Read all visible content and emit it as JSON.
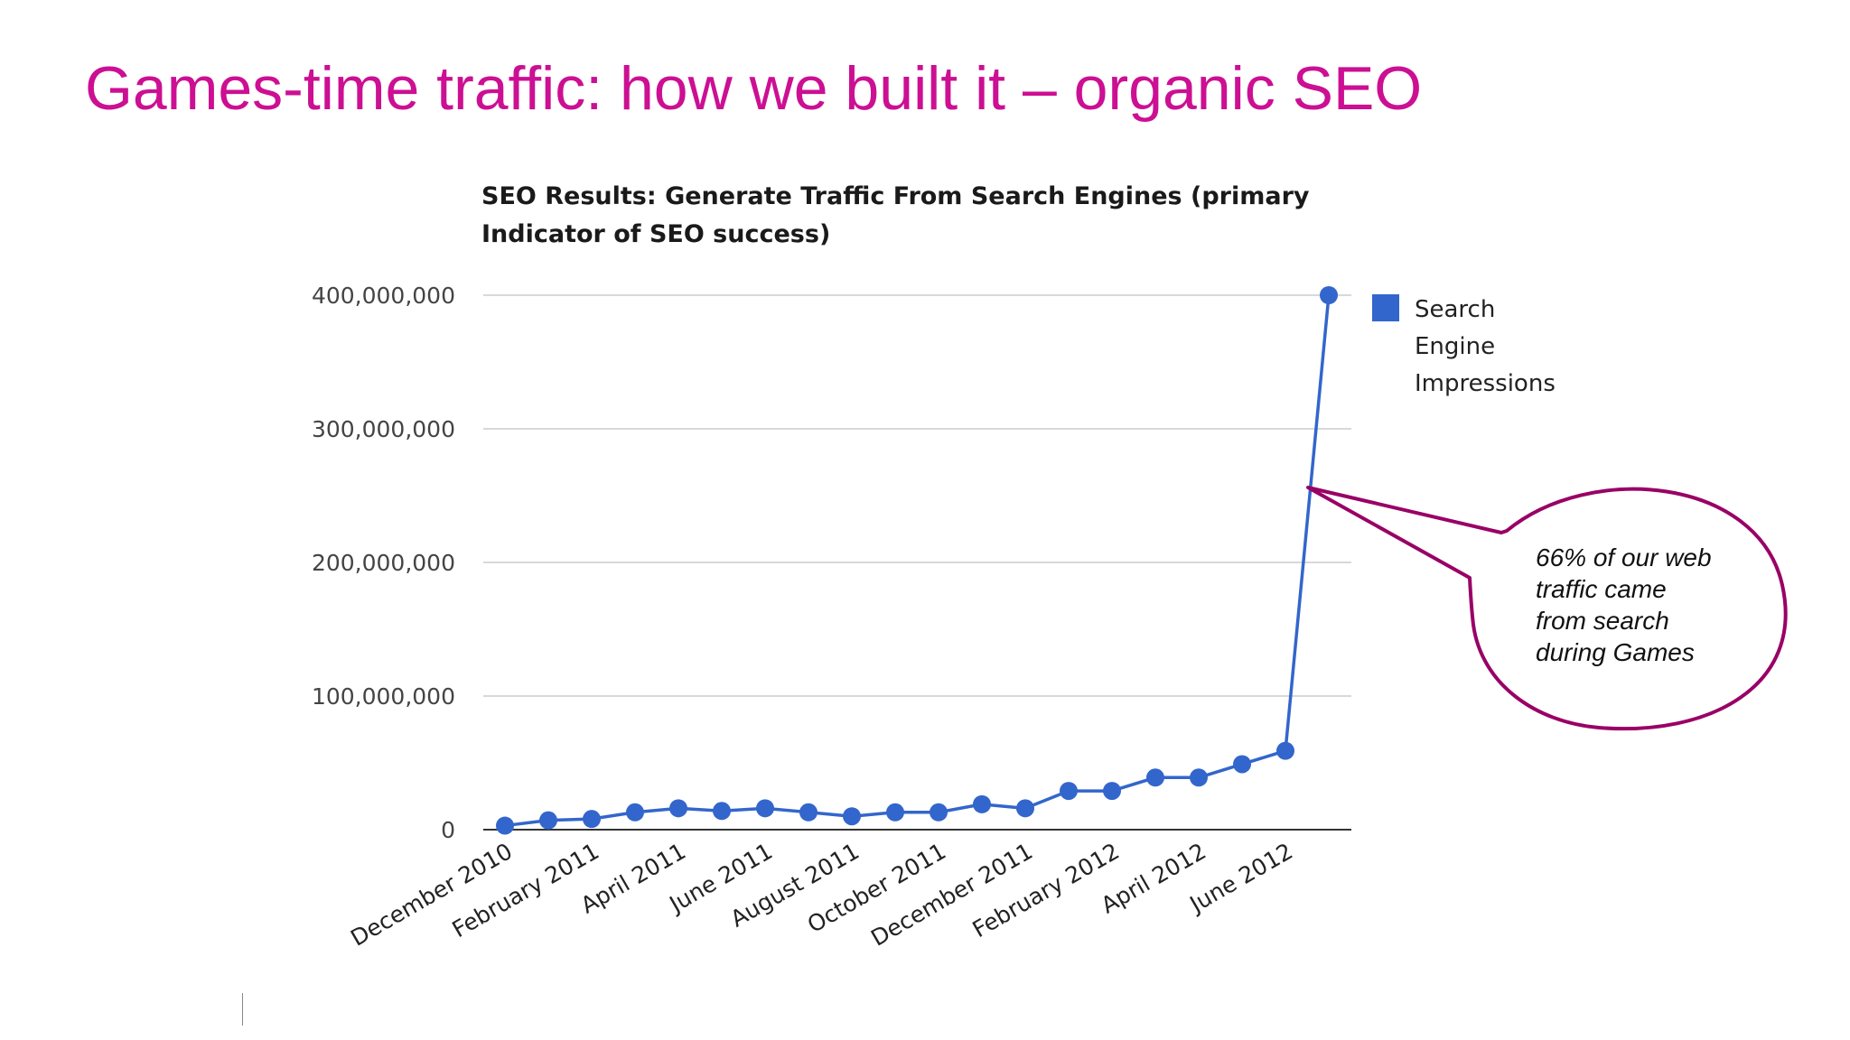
{
  "slide": {
    "title": "Games-time traffic: how we built it – organic SEO"
  },
  "chart_data": {
    "type": "line",
    "title": "SEO Results: Generate Traffic From Search Engines (primary Indicator of SEO success)",
    "title_lines": [
      "SEO Results: Generate Traffic From Search Engines (primary",
      "Indicator of SEO success)"
    ],
    "xlabel": "",
    "ylabel": "",
    "ylim": [
      0,
      400000000
    ],
    "yticks": [
      0,
      100000000,
      200000000,
      300000000,
      400000000
    ],
    "ytick_labels": [
      "0",
      "100,000,000",
      "200,000,000",
      "300,000,000",
      "400,000,000"
    ],
    "x": [
      "December 2010",
      "January 2011",
      "February 2011",
      "March 2011",
      "April 2011",
      "May 2011",
      "June 2011",
      "July 2011",
      "August 2011",
      "September 2011",
      "October 2011",
      "November 2011",
      "December 2011",
      "January 2012",
      "February 2012",
      "March 2012",
      "April 2012",
      "May 2012",
      "June 2012",
      "July 2012"
    ],
    "xtick_labels": [
      "December 2010",
      "February 2011",
      "April 2011",
      "June 2011",
      "August 2011",
      "October 2011",
      "December 2011",
      "February 2012",
      "April 2012",
      "June 2012"
    ],
    "series": [
      {
        "name": "Search Engine Impressions",
        "color": "#3366cc",
        "values": [
          3000000,
          7000000,
          8000000,
          13000000,
          16000000,
          14000000,
          16000000,
          13000000,
          10000000,
          13000000,
          13000000,
          19000000,
          16000000,
          29000000,
          29000000,
          39000000,
          39000000,
          49000000,
          59000000,
          400000000
        ]
      }
    ],
    "legend": {
      "position": "right",
      "lines": [
        "Search",
        "Engine",
        "Impressions"
      ]
    },
    "grid": true,
    "annotation": {
      "lines": [
        "66% of our web",
        "traffic came",
        "from search",
        "during Games"
      ],
      "border_color": "#990066"
    }
  }
}
